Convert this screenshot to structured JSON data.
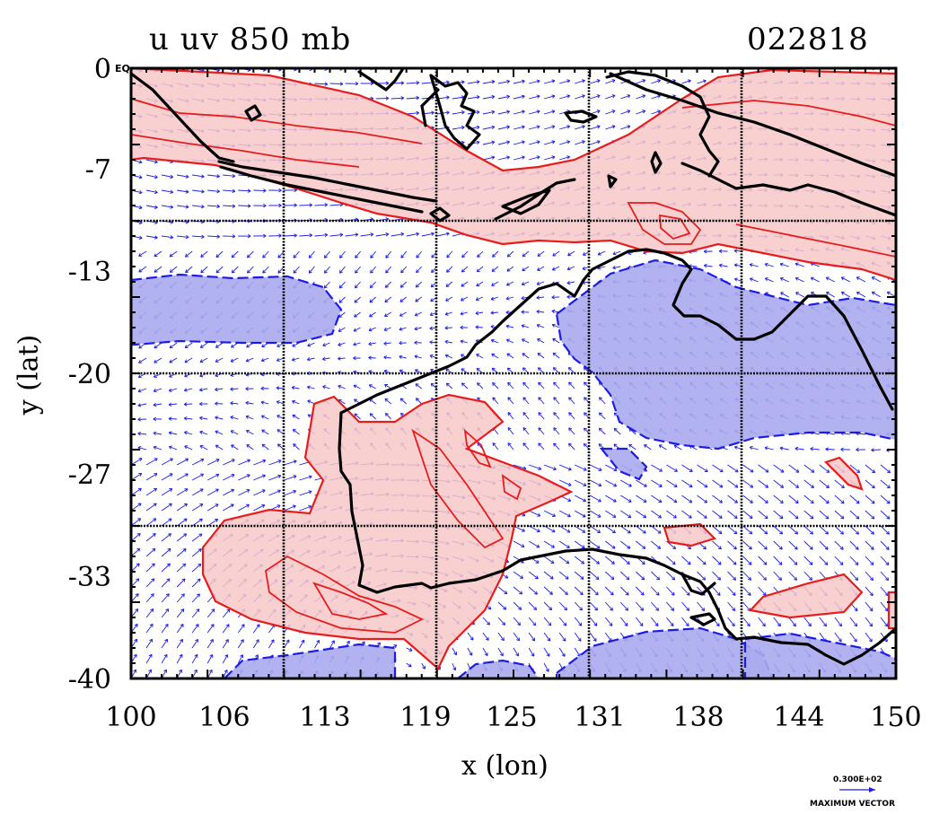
{
  "title": {
    "left": "u uv 850 mb",
    "right": "022818"
  },
  "axes": {
    "x_title": "x (lon)",
    "y_title": "y (lat)",
    "x_ticks": [
      "100",
      "106",
      "113",
      "119",
      "125",
      "131",
      "138",
      "144",
      "150"
    ],
    "y_ticks": [
      "0",
      "-7",
      "-13",
      "-20",
      "-27",
      "-33",
      "-40"
    ],
    "eq_label": "EQ"
  },
  "map_data": {
    "lon_range": [
      100,
      150
    ],
    "lat_range": [
      -40,
      0
    ],
    "positive_fill": "#f8c8c8",
    "positive_line": "#e81c1c",
    "negative_fill": "#aaaaee",
    "negative_line": "#1c1ce8",
    "vector_color": "#1c1ce8",
    "coast_color": "#000000"
  },
  "vector_key": {
    "value": "0.300E+02",
    "label": "MAXIMUM VECTOR"
  }
}
